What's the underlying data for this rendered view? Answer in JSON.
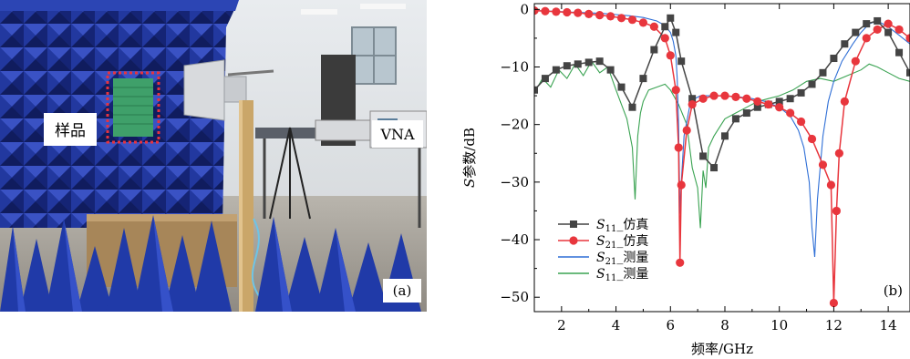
{
  "photo": {
    "sample_label": "样品",
    "vna_label": "VNA",
    "panel_label": "(a)"
  },
  "chart_data": {
    "type": "line",
    "panel_label": "(b)",
    "xlabel": "频率/GHz",
    "ylabel_italic": "S",
    "ylabel_rest": "参数/dB",
    "xlim": [
      1,
      14.8
    ],
    "ylim": [
      -52.5,
      1
    ],
    "xticks": [
      2,
      4,
      6,
      8,
      10,
      12,
      14
    ],
    "yticks": [
      0,
      -10,
      -20,
      -30,
      -40,
      -50
    ],
    "grid": false,
    "legend_position": "bottom-left",
    "colors": {
      "s11_sim": "#444444",
      "s21_sim": "#e8363d",
      "s21_meas": "#2f6fd6",
      "s11_meas": "#3aa352"
    },
    "series": [
      {
        "name_italic": "S",
        "name_sub": "11",
        "name_rest": "_仿真",
        "key": "s11_sim",
        "style": "line+square",
        "x": [
          1.0,
          1.4,
          1.8,
          2.2,
          2.6,
          3.0,
          3.4,
          3.8,
          4.2,
          4.6,
          5.0,
          5.4,
          5.8,
          6.0,
          6.2,
          6.4,
          6.8,
          7.2,
          7.6,
          8.0,
          8.4,
          8.8,
          9.2,
          9.6,
          10.0,
          10.4,
          10.8,
          11.2,
          11.6,
          12.0,
          12.4,
          12.8,
          13.2,
          13.6,
          14.0,
          14.4,
          14.8
        ],
        "y": [
          -14.0,
          -12.0,
          -10.5,
          -9.8,
          -9.5,
          -9.2,
          -9.0,
          -10.5,
          -13.5,
          -17.0,
          -12.0,
          -7.0,
          -3.0,
          -1.5,
          -4.0,
          -9.0,
          -15.5,
          -25.5,
          -27.5,
          -22.0,
          -19.0,
          -18.0,
          -17.0,
          -16.5,
          -16.0,
          -15.5,
          -14.5,
          -13.0,
          -11.0,
          -8.5,
          -6.0,
          -4.0,
          -2.5,
          -2.0,
          -4.0,
          -7.5,
          -11.0
        ]
      },
      {
        "name_italic": "S",
        "name_sub": "21",
        "name_rest": "_仿真",
        "key": "s21_sim",
        "style": "line+circle",
        "x": [
          1.0,
          1.4,
          1.8,
          2.2,
          2.6,
          3.0,
          3.4,
          3.8,
          4.2,
          4.6,
          5.0,
          5.4,
          5.8,
          6.0,
          6.2,
          6.3,
          6.35,
          6.4,
          6.6,
          6.8,
          7.2,
          7.6,
          8.0,
          8.4,
          8.8,
          9.2,
          9.6,
          10.0,
          10.4,
          10.8,
          11.2,
          11.6,
          11.9,
          12.0,
          12.1,
          12.2,
          12.4,
          12.8,
          13.2,
          13.6,
          14.0,
          14.4,
          14.8
        ],
        "y": [
          -0.2,
          -0.3,
          -0.4,
          -0.5,
          -0.6,
          -0.8,
          -1.0,
          -1.2,
          -1.5,
          -1.8,
          -2.3,
          -3.0,
          -5.0,
          -8.0,
          -14.0,
          -24.0,
          -44.0,
          -30.5,
          -21.0,
          -16.5,
          -15.5,
          -15.0,
          -15.0,
          -15.2,
          -15.5,
          -16.0,
          -16.5,
          -17.0,
          -18.0,
          -19.5,
          -22.5,
          -27.0,
          -30.5,
          -51.0,
          -35.0,
          -25.0,
          -16.0,
          -9.0,
          -5.0,
          -3.5,
          -2.5,
          -3.5,
          -5.0
        ]
      },
      {
        "name_italic": "S",
        "name_sub": "21",
        "name_rest": "_测量",
        "key": "s21_meas",
        "style": "line",
        "x": [
          1.0,
          1.5,
          2.0,
          2.5,
          3.0,
          3.5,
          4.0,
          4.5,
          5.0,
          5.5,
          5.8,
          6.0,
          6.1,
          6.2,
          6.25,
          6.3,
          6.35,
          6.4,
          6.5,
          6.7,
          6.9,
          7.1,
          7.5,
          8.0,
          8.5,
          9.0,
          9.5,
          10.0,
          10.4,
          10.7,
          10.9,
          11.1,
          11.2,
          11.3,
          11.4,
          11.6,
          11.8,
          12.0,
          12.3,
          12.7,
          13.0,
          13.3,
          13.6,
          14.0,
          14.4,
          14.8
        ],
        "y": [
          -0.2,
          -0.3,
          -0.4,
          -0.5,
          -0.6,
          -0.7,
          -0.9,
          -1.1,
          -1.4,
          -2.0,
          -2.8,
          -4.0,
          -5.5,
          -8.0,
          -12.0,
          -20.0,
          -35.5,
          -30.0,
          -22.0,
          -17.0,
          -15.5,
          -15.0,
          -15.0,
          -15.0,
          -15.2,
          -15.5,
          -16.0,
          -17.0,
          -18.5,
          -21.0,
          -24.0,
          -30.0,
          -38.0,
          -43.0,
          -33.0,
          -22.0,
          -16.0,
          -12.5,
          -9.0,
          -6.0,
          -4.0,
          -2.5,
          -2.0,
          -3.0,
          -4.5,
          -6.0
        ]
      },
      {
        "name_italic": "S",
        "name_sub": "11",
        "name_rest": "_测量",
        "key": "s11_meas",
        "style": "line",
        "x": [
          1.0,
          1.3,
          1.6,
          1.9,
          2.2,
          2.5,
          2.8,
          3.1,
          3.4,
          3.7,
          4.0,
          4.2,
          4.4,
          4.6,
          4.7,
          4.8,
          4.9,
          5.0,
          5.2,
          5.5,
          5.8,
          6.0,
          6.3,
          6.6,
          6.8,
          7.0,
          7.1,
          7.2,
          7.3,
          7.4,
          7.6,
          7.8,
          8.0,
          8.4,
          8.8,
          9.2,
          9.6,
          10.0,
          10.5,
          11.0,
          11.5,
          12.0,
          12.5,
          13.0,
          13.3,
          13.6,
          14.0,
          14.4,
          14.8
        ],
        "y": [
          -14.5,
          -12.0,
          -13.5,
          -10.5,
          -12.0,
          -9.5,
          -11.5,
          -9.0,
          -11.0,
          -10.0,
          -14.0,
          -16.5,
          -19.0,
          -24.0,
          -33.0,
          -22.0,
          -18.0,
          -16.0,
          -14.0,
          -13.5,
          -13.0,
          -14.0,
          -16.5,
          -20.0,
          -27.5,
          -31.0,
          -38.0,
          -28.0,
          -31.0,
          -24.0,
          -22.0,
          -20.5,
          -19.0,
          -18.0,
          -17.0,
          -16.0,
          -15.5,
          -15.0,
          -14.0,
          -12.5,
          -12.0,
          -12.5,
          -11.5,
          -10.5,
          -9.5,
          -10.0,
          -11.0,
          -12.0,
          -12.5
        ]
      }
    ]
  }
}
